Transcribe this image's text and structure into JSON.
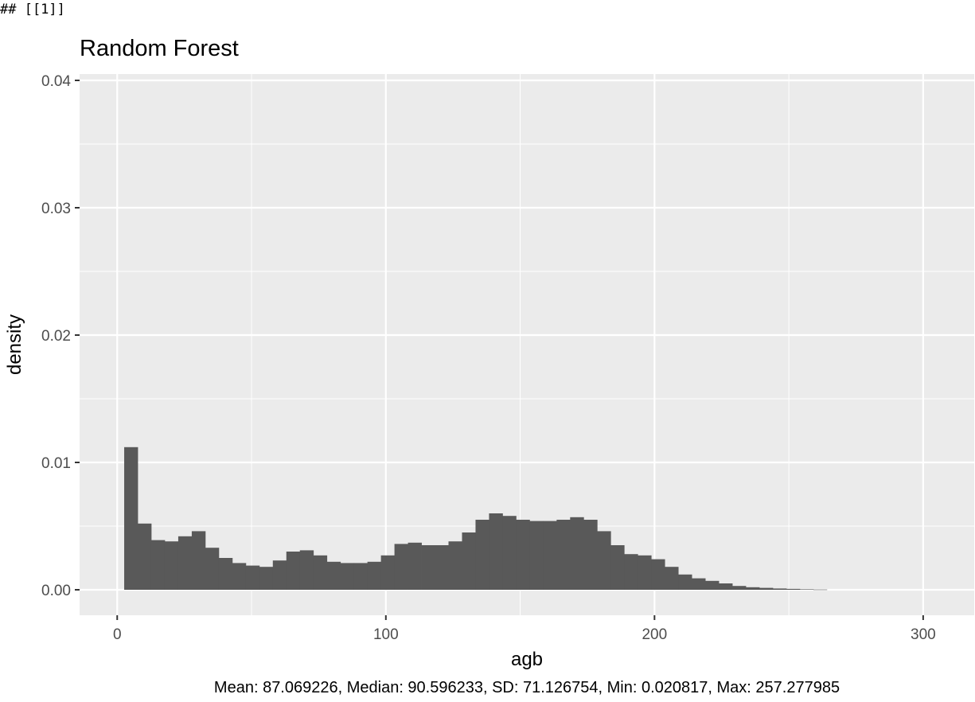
{
  "console_prefix": "## [[1]]",
  "chart_data": {
    "type": "bar",
    "title": "Random Forest",
    "xlabel": "agb",
    "ylabel": "density",
    "caption": "Mean: 87.069226, Median: 90.596233, SD: 71.126754, Min: 0.020817, Max: 257.277985",
    "xlim": [
      -14,
      319
    ],
    "ylim": [
      -0.002,
      0.0405
    ],
    "x_ticks": [
      0,
      100,
      200,
      300
    ],
    "x_tick_labels": [
      "0",
      "100",
      "200",
      "300"
    ],
    "y_ticks": [
      0,
      0.01,
      0.02,
      0.03,
      0.04
    ],
    "y_tick_labels": [
      "0.00",
      "0.01",
      "0.02",
      "0.03",
      "0.04"
    ],
    "grid": true,
    "bin_width": 5.03,
    "bin_start": 2.6,
    "values": [
      0.0112,
      0.0052,
      0.0039,
      0.0038,
      0.0042,
      0.0046,
      0.0033,
      0.0025,
      0.0021,
      0.0019,
      0.0018,
      0.0023,
      0.003,
      0.0031,
      0.0027,
      0.0022,
      0.0021,
      0.0021,
      0.0022,
      0.0027,
      0.0036,
      0.0037,
      0.0035,
      0.0035,
      0.0038,
      0.0045,
      0.0055,
      0.006,
      0.0058,
      0.0055,
      0.0054,
      0.0054,
      0.0055,
      0.0057,
      0.0055,
      0.0046,
      0.0035,
      0.0028,
      0.0027,
      0.0024,
      0.0018,
      0.0012,
      0.0009,
      0.0007,
      0.0005,
      0.0003,
      0.0002,
      0.00015,
      0.0001,
      7e-05,
      4e-05,
      2e-05
    ],
    "colors": {
      "panel": "#EBEBEB",
      "grid": "#FFFFFF",
      "bar": "#595959",
      "text": "#4D4D4D"
    }
  }
}
